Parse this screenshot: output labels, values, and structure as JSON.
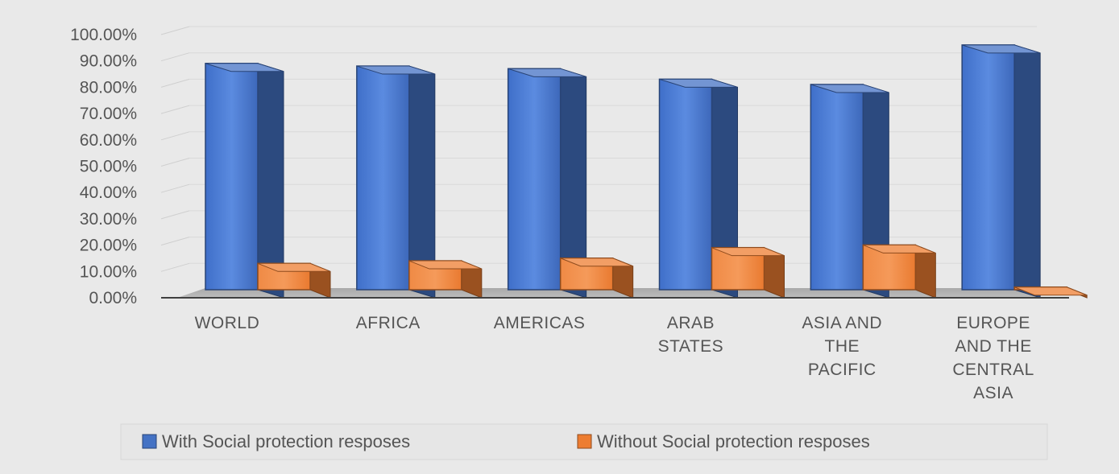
{
  "chart_data": {
    "type": "bar",
    "title": "",
    "xlabel": "",
    "ylabel": "",
    "ylim": [
      0,
      100
    ],
    "y_ticks": [
      "0.00%",
      "10.00%",
      "20.00%",
      "30.00%",
      "40.00%",
      "50.00%",
      "60.00%",
      "70.00%",
      "80.00%",
      "90.00%",
      "100.00%"
    ],
    "categories": [
      [
        "WORLD"
      ],
      [
        "AFRICA"
      ],
      [
        "AMERICAS"
      ],
      [
        "ARAB",
        "STATES"
      ],
      [
        "ASIA AND",
        "THE",
        "PACIFIC"
      ],
      [
        "EUROPE",
        "AND THE",
        "CENTRAL",
        "ASIA"
      ]
    ],
    "series": [
      {
        "name": "With Social protection resposes",
        "color": "#4472c4",
        "values": [
          86,
          85,
          84,
          80,
          78,
          93
        ]
      },
      {
        "name": "Without Social protection resposes",
        "color": "#ed7d31",
        "values": [
          10,
          11,
          12,
          16,
          17,
          1
        ]
      }
    ],
    "grid": true,
    "legend_position": "bottom"
  }
}
